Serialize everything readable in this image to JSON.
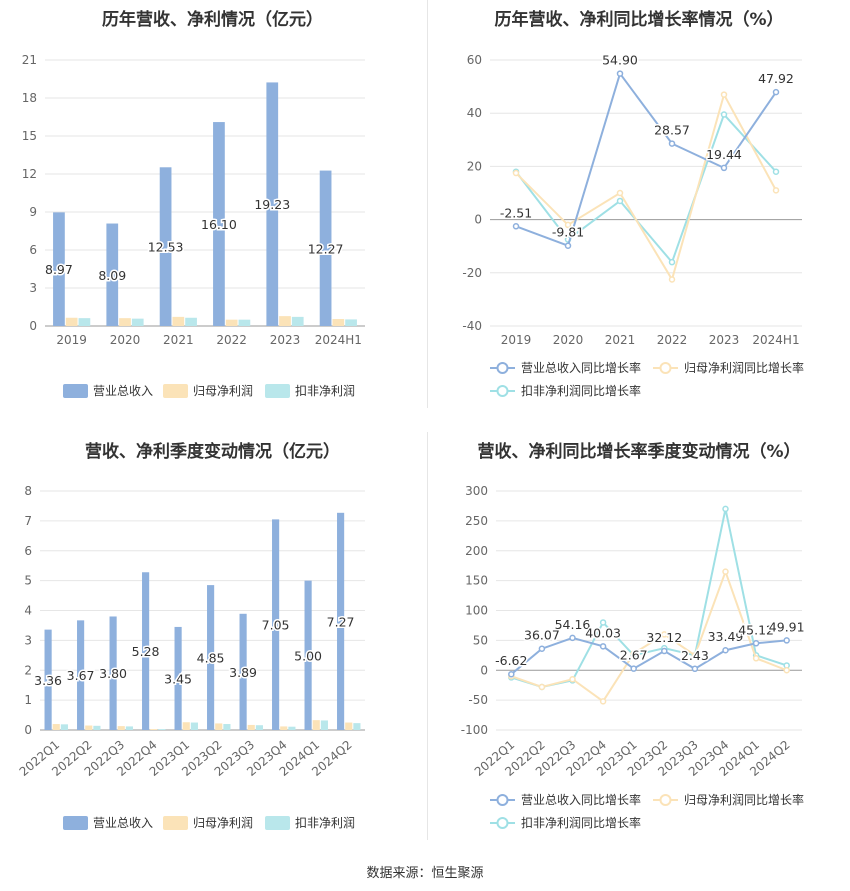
{
  "source_label": "数据来源：恒生聚源",
  "chart_data": [
    {
      "id": "annual_bars",
      "type": "bar",
      "title": "历年营收、净利情况（亿元）",
      "categories": [
        "2019",
        "2020",
        "2021",
        "2022",
        "2023",
        "2024H1"
      ],
      "ylim": [
        0,
        21
      ],
      "yticks": [
        0,
        3,
        6,
        9,
        12,
        15,
        18,
        21
      ],
      "series": [
        {
          "name": "营业总收入",
          "color": "#8eb0dd",
          "values": [
            8.97,
            8.09,
            12.53,
            16.1,
            19.23,
            12.27
          ],
          "labels": [
            "8.97",
            "8.09",
            "12.53",
            "16.10",
            "19.23",
            "12.27"
          ]
        },
        {
          "name": "归母净利润",
          "color": "#fbe3b8",
          "values": [
            0.65,
            0.62,
            0.72,
            0.5,
            0.78,
            0.55
          ]
        },
        {
          "name": "扣非净利润",
          "color": "#b9e7eb",
          "values": [
            0.62,
            0.58,
            0.65,
            0.5,
            0.72,
            0.52
          ]
        }
      ]
    },
    {
      "id": "annual_growth",
      "type": "line",
      "title": "历年营收、净利同比增长率情况（%）",
      "categories": [
        "2019",
        "2020",
        "2021",
        "2022",
        "2023",
        "2024H1"
      ],
      "ylim": [
        -40,
        60
      ],
      "yticks": [
        -40,
        -20,
        0,
        20,
        40,
        60
      ],
      "series": [
        {
          "name": "营业总收入同比增长率",
          "color": "#8eb0dd",
          "values": [
            -2.51,
            -9.81,
            54.9,
            28.57,
            19.44,
            47.92
          ],
          "labels": [
            "-2.51",
            "-9.81",
            "54.90",
            "28.57",
            "19.44",
            "47.92"
          ]
        },
        {
          "name": "归母净利润同比增长率",
          "color": "#fbe3b8",
          "values": [
            17.5,
            -2.0,
            10.0,
            -22.5,
            47.0,
            11.0
          ]
        },
        {
          "name": "扣非净利润同比增长率",
          "color": "#9fe0e5",
          "values": [
            18.0,
            -7.5,
            7.0,
            -16.0,
            39.5,
            18.0
          ]
        }
      ]
    },
    {
      "id": "quarterly_bars",
      "type": "bar",
      "title": "营收、净利季度变动情况（亿元）",
      "categories": [
        "2022Q1",
        "2022Q2",
        "2022Q3",
        "2022Q4",
        "2023Q1",
        "2023Q2",
        "2023Q3",
        "2023Q4",
        "2024Q1",
        "2024Q2"
      ],
      "ylim": [
        0,
        8
      ],
      "yticks": [
        0,
        1,
        2,
        3,
        4,
        5,
        6,
        7,
        8
      ],
      "series": [
        {
          "name": "营业总收入",
          "color": "#8eb0dd",
          "values": [
            3.36,
            3.67,
            3.8,
            5.28,
            3.45,
            4.85,
            3.89,
            7.05,
            5.0,
            7.27
          ],
          "labels": [
            "3.36",
            "3.67",
            "3.80",
            "5.28",
            "3.45",
            "4.85",
            "3.89",
            "7.05",
            "5.00",
            "7.27"
          ]
        },
        {
          "name": "归母净利润",
          "color": "#fbe3b8",
          "values": [
            0.2,
            0.15,
            0.13,
            0.03,
            0.26,
            0.22,
            0.17,
            0.12,
            0.33,
            0.25
          ]
        },
        {
          "name": "扣非净利润",
          "color": "#b9e7eb",
          "values": [
            0.19,
            0.14,
            0.12,
            0.03,
            0.25,
            0.2,
            0.16,
            0.11,
            0.32,
            0.23
          ]
        }
      ]
    },
    {
      "id": "quarterly_growth",
      "type": "line",
      "title": "营收、净利同比增长率季度变动情况（%）",
      "categories": [
        "2022Q1",
        "2022Q2",
        "2022Q3",
        "2022Q4",
        "2023Q1",
        "2023Q2",
        "2023Q3",
        "2023Q4",
        "2024Q1",
        "2024Q2"
      ],
      "ylim": [
        -100,
        300
      ],
      "yticks": [
        -100,
        -50,
        0,
        50,
        100,
        150,
        200,
        250,
        300
      ],
      "series": [
        {
          "name": "营业总收入同比增长率",
          "color": "#8eb0dd",
          "values": [
            -6.62,
            36.07,
            54.16,
            40.03,
            2.67,
            32.12,
            2.43,
            33.49,
            45.12,
            49.91
          ],
          "labels": [
            "-6.62",
            "36.07",
            "54.16",
            "40.03",
            "2.67",
            "32.12",
            "2.43",
            "33.49",
            "45.12",
            "49.91"
          ]
        },
        {
          "name": "归母净利润同比增长率",
          "color": "#fbe3b8",
          "values": [
            -10,
            -28,
            -15,
            -52,
            28,
            60,
            25,
            165,
            20,
            0
          ]
        },
        {
          "name": "扣非净利润同比增长率",
          "color": "#9fe0e5",
          "values": [
            -12,
            -28,
            -17,
            80,
            25,
            37,
            25,
            270,
            25,
            8
          ]
        }
      ]
    }
  ]
}
